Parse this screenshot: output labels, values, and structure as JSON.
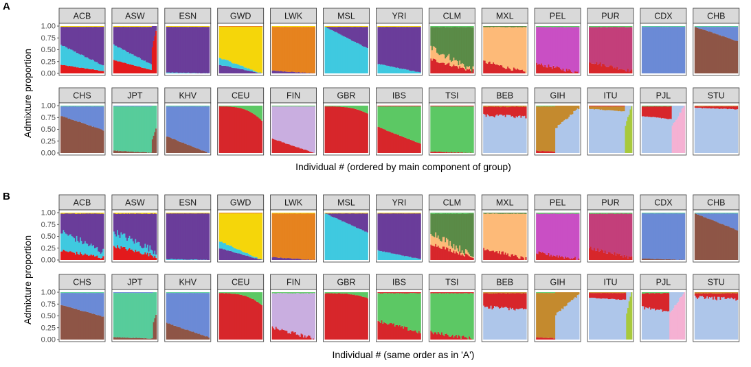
{
  "colors": {
    "afr_purple": "#6a3d9a",
    "afr_red": "#e31a1c",
    "afr_cyan": "#3fc9e0",
    "afr_gold": "#f5d60a",
    "afr_orange": "#e6831f",
    "eas_blue": "#6b8ad6",
    "eas_brown": "#8e5546",
    "eas_teal": "#57cc9b",
    "eur_red": "#d7262b",
    "eur_lilac": "#c9aee0",
    "eur_green": "#5cc864",
    "amr_green": "#5a8b47",
    "amr_peach": "#fdba78",
    "amr_magenta": "#c94fc4",
    "amr_rose": "#c33f7a",
    "sas_lightblue": "#aec6ea",
    "sas_ochre": "#c48a2e",
    "sas_pink": "#f5b1d3",
    "sas_olive": "#a8c93d"
  },
  "chart_data": [
    {
      "type": "stacked-bar-facets",
      "panel_label": "A",
      "xlabel": "Individual # (ordered by main component of group)",
      "ylabel": "Admixture proportion",
      "ylim": [
        0,
        1
      ],
      "yticks": [
        "0.00",
        "0.25",
        "0.50",
        "0.75",
        "1.00"
      ],
      "rows": [
        [
          {
            "name": "ACB",
            "mode": "stack",
            "main": "afr_purple",
            "minor": [
              {
                "c": "afr_red",
                "s": 0.05,
                "e": 0.18
              },
              {
                "c": "afr_cyan",
                "s": 0.12,
                "e": 0.42
              }
            ],
            "top": "afr_gold"
          },
          {
            "name": "ASW",
            "mode": "stack",
            "main": "afr_purple",
            "minor": [
              {
                "c": "afr_red",
                "s": 0.05,
                "e": 0.28
              },
              {
                "c": "afr_cyan",
                "s": 0.1,
                "e": 0.32
              }
            ],
            "top": "afr_gold",
            "tail": {
              "c": "afr_red",
              "f": 0.1,
              "v": 0.9
            }
          },
          {
            "name": "ESN",
            "mode": "stack",
            "main": "afr_purple",
            "minor": [
              {
                "c": "afr_cyan",
                "s": 0,
                "e": 0.02
              }
            ],
            "top": "afr_gold"
          },
          {
            "name": "GWD",
            "mode": "stack",
            "main": "afr_gold",
            "minor": [
              {
                "c": "afr_purple",
                "s": 0,
                "e": 0.18
              },
              {
                "c": "afr_cyan",
                "s": 0,
                "e": 0.15
              }
            ],
            "top": "afr_orange"
          },
          {
            "name": "LWK",
            "mode": "stack",
            "main": "afr_orange",
            "minor": [
              {
                "c": "afr_purple",
                "s": 0,
                "e": 0.06
              }
            ],
            "top": "afr_gold"
          },
          {
            "name": "MSL",
            "mode": "top",
            "main": "afr_cyan",
            "sub": {
              "c": "afr_purple",
              "s": 0,
              "e": 0.45
            },
            "top": "afr_gold"
          },
          {
            "name": "YRI",
            "mode": "stack",
            "main": "afr_purple",
            "minor": [
              {
                "c": "afr_cyan",
                "s": 0.02,
                "e": 0.2
              }
            ],
            "top": "afr_gold"
          },
          {
            "name": "CLM",
            "mode": "stack",
            "main": "amr_green",
            "minor": [
              {
                "c": "eur_red",
                "s": 0.05,
                "e": 0.3
              },
              {
                "c": "amr_peach",
                "s": 0.02,
                "e": 0.25
              }
            ],
            "top": "eur_green",
            "noisy": true
          },
          {
            "name": "MXL",
            "mode": "stack",
            "main": "amr_peach",
            "minor": [
              {
                "c": "eur_red",
                "s": 0.02,
                "e": 0.25
              }
            ],
            "top": "amr_green",
            "noisy": true
          },
          {
            "name": "PEL",
            "mode": "stack",
            "main": "amr_magenta",
            "minor": [
              {
                "c": "eur_red",
                "s": 0.02,
                "e": 0.2
              }
            ],
            "top": "eur_green",
            "noisy": true
          },
          {
            "name": "PUR",
            "mode": "stack",
            "main": "amr_rose",
            "minor": [
              {
                "c": "eur_red",
                "s": 0.05,
                "e": 0.25
              }
            ],
            "top": "eur_green",
            "noisy": true
          },
          {
            "name": "CDX",
            "mode": "stack",
            "main": "eas_blue",
            "minor": [],
            "top": "eas_teal"
          },
          {
            "name": "CHB",
            "mode": "top",
            "main": "eas_brown",
            "sub": {
              "c": "eas_blue",
              "s": 0,
              "e": 0.3
            },
            "top": "eas_teal"
          }
        ],
        [
          {
            "name": "CHS",
            "mode": "top",
            "main": "eas_brown",
            "sub": {
              "c": "eas_blue",
              "s": 0.2,
              "e": 0.5
            },
            "top": "eas_teal"
          },
          {
            "name": "JPT",
            "mode": "stack",
            "main": "eas_teal",
            "minor": [
              {
                "c": "eas_brown",
                "s": 0,
                "e": 0.05
              }
            ],
            "top": "eas_blue",
            "tail": {
              "c": "eas_brown",
              "f": 0.1,
              "v": 0.5
            }
          },
          {
            "name": "KHV",
            "mode": "stack",
            "main": "eas_blue",
            "minor": [
              {
                "c": "eas_brown",
                "s": 0,
                "e": 0.35
              }
            ],
            "top": "eas_teal"
          },
          {
            "name": "CEU",
            "mode": "stack",
            "main": "eur_red",
            "minor": [],
            "top": "eur_green",
            "topgrow": 0.3
          },
          {
            "name": "FIN",
            "mode": "stack",
            "main": "eur_lilac",
            "minor": [
              {
                "c": "eur_red",
                "s": 0,
                "e": 0.3
              }
            ],
            "top": "eur_green"
          },
          {
            "name": "GBR",
            "mode": "stack",
            "main": "eur_red",
            "minor": [],
            "top": "eur_green",
            "topgrow": 0.15
          },
          {
            "name": "IBS",
            "mode": "stack",
            "main": "eur_green",
            "minor": [
              {
                "c": "eur_red",
                "s": 0.2,
                "e": 0.55
              }
            ],
            "top": "eur_red"
          },
          {
            "name": "TSI",
            "mode": "stack",
            "main": "eur_green",
            "minor": [
              {
                "c": "eur_red",
                "s": 0,
                "e": 0.03
              }
            ],
            "top": "eur_red"
          },
          {
            "name": "BEB",
            "mode": "top",
            "main": "sas_lightblue",
            "sub": {
              "c": "eur_red",
              "s": 0.18,
              "e": 0.22
            },
            "top": "sas_ochre",
            "noisy": true
          },
          {
            "name": "GIH",
            "mode": "stack",
            "main": "sas_ochre",
            "minor": [
              {
                "c": "eur_red",
                "s": 0,
                "e": 0.05
              }
            ],
            "top": "eur_green",
            "tail": {
              "c": "sas_lightblue",
              "f": 0.55,
              "v": 0.95
            }
          },
          {
            "name": "ITU",
            "mode": "top",
            "main": "sas_lightblue",
            "sub": {
              "c": "sas_ochre",
              "s": 0.05,
              "e": 0.12
            },
            "top": "eur_red",
            "tail": {
              "c": "sas_olive",
              "f": 0.15,
              "v": 1
            }
          },
          {
            "name": "PJL",
            "mode": "top",
            "main": "sas_lightblue",
            "sub": {
              "c": "eur_red",
              "s": 0.2,
              "e": 0.3
            },
            "top": "eur_green",
            "tail": {
              "c": "sas_pink",
              "f": 0.3,
              "v": 1
            }
          },
          {
            "name": "STU",
            "mode": "top",
            "main": "sas_lightblue",
            "sub": {
              "c": "eur_red",
              "s": 0.03,
              "e": 0.06
            },
            "top": "sas_ochre"
          }
        ]
      ]
    },
    {
      "type": "stacked-bar-facets",
      "panel_label": "B",
      "xlabel": "Individual # (same order as in 'A')",
      "ylabel": "Admixture proportion",
      "ylim": [
        0,
        1
      ],
      "yticks": [
        "0.00",
        "0.25",
        "0.50",
        "0.75",
        "1.00"
      ],
      "rows": [
        [
          {
            "name": "ACB",
            "mode": "stack",
            "main": "afr_purple",
            "minor": [
              {
                "c": "afr_red",
                "s": 0.05,
                "e": 0.2
              },
              {
                "c": "afr_cyan",
                "s": 0.12,
                "e": 0.4
              }
            ],
            "top": "afr_gold",
            "noisy": true
          },
          {
            "name": "ASW",
            "mode": "stack",
            "main": "afr_purple",
            "minor": [
              {
                "c": "afr_red",
                "s": 0.08,
                "e": 0.3
              },
              {
                "c": "afr_cyan",
                "s": 0.1,
                "e": 0.3
              }
            ],
            "top": "afr_gold",
            "noisy": true
          },
          {
            "name": "ESN",
            "mode": "stack",
            "main": "afr_purple",
            "minor": [
              {
                "c": "afr_cyan",
                "s": 0,
                "e": 0.02
              }
            ],
            "top": "afr_gold"
          },
          {
            "name": "GWD",
            "mode": "stack",
            "main": "afr_gold",
            "minor": [
              {
                "c": "afr_purple",
                "s": 0,
                "e": 0.25
              },
              {
                "c": "afr_cyan",
                "s": 0,
                "e": 0.15
              }
            ],
            "top": "afr_orange"
          },
          {
            "name": "LWK",
            "mode": "stack",
            "main": "afr_orange",
            "minor": [
              {
                "c": "afr_purple",
                "s": 0,
                "e": 0.06
              }
            ],
            "top": "afr_gold"
          },
          {
            "name": "MSL",
            "mode": "top",
            "main": "afr_cyan",
            "sub": {
              "c": "afr_purple",
              "s": 0,
              "e": 0.4
            },
            "top": "afr_gold"
          },
          {
            "name": "YRI",
            "mode": "stack",
            "main": "afr_purple",
            "minor": [
              {
                "c": "afr_cyan",
                "s": 0.02,
                "e": 0.2
              }
            ],
            "top": "afr_gold"
          },
          {
            "name": "CLM",
            "mode": "stack",
            "main": "amr_green",
            "minor": [
              {
                "c": "eur_red",
                "s": 0.05,
                "e": 0.35
              },
              {
                "c": "amr_peach",
                "s": 0.02,
                "e": 0.25
              }
            ],
            "top": "eur_green",
            "noisy": true
          },
          {
            "name": "MXL",
            "mode": "stack",
            "main": "amr_peach",
            "minor": [
              {
                "c": "eur_red",
                "s": 0.02,
                "e": 0.25
              }
            ],
            "top": "amr_green",
            "noisy": true
          },
          {
            "name": "PEL",
            "mode": "stack",
            "main": "amr_magenta",
            "minor": [
              {
                "c": "eur_red",
                "s": 0.02,
                "e": 0.15
              }
            ],
            "top": "eur_green",
            "noisy": true
          },
          {
            "name": "PUR",
            "mode": "stack",
            "main": "amr_rose",
            "minor": [
              {
                "c": "eur_red",
                "s": 0.05,
                "e": 0.25
              }
            ],
            "top": "eur_green",
            "noisy": true
          },
          {
            "name": "CDX",
            "mode": "stack",
            "main": "eas_blue",
            "minor": [
              {
                "c": "eas_brown",
                "s": 0,
                "e": 0.03
              }
            ],
            "top": "eas_teal"
          },
          {
            "name": "CHB",
            "mode": "top",
            "main": "eas_brown",
            "sub": {
              "c": "eas_blue",
              "s": 0,
              "e": 0.35
            },
            "top": "eas_teal"
          }
        ],
        [
          {
            "name": "CHS",
            "mode": "top",
            "main": "eas_brown",
            "sub": {
              "c": "eas_blue",
              "s": 0.25,
              "e": 0.5
            },
            "top": "eas_teal"
          },
          {
            "name": "JPT",
            "mode": "stack",
            "main": "eas_teal",
            "minor": [
              {
                "c": "eas_brown",
                "s": 0.02,
                "e": 0.05
              }
            ],
            "top": "eas_blue",
            "tail": {
              "c": "eas_brown",
              "f": 0.08,
              "v": 0.55
            }
          },
          {
            "name": "KHV",
            "mode": "stack",
            "main": "eas_blue",
            "minor": [
              {
                "c": "eas_brown",
                "s": 0.05,
                "e": 0.35
              }
            ],
            "top": "eas_teal"
          },
          {
            "name": "CEU",
            "mode": "stack",
            "main": "eur_red",
            "minor": [],
            "top": "eur_green",
            "topgrow": 0.25,
            "noisy": true
          },
          {
            "name": "FIN",
            "mode": "stack",
            "main": "eur_lilac",
            "minor": [
              {
                "c": "eur_red",
                "s": 0.02,
                "e": 0.25
              }
            ],
            "top": "eur_green",
            "noisy": true
          },
          {
            "name": "GBR",
            "mode": "stack",
            "main": "eur_red",
            "minor": [],
            "top": "eur_green",
            "topgrow": 0.1,
            "noisy": true
          },
          {
            "name": "IBS",
            "mode": "stack",
            "main": "eur_green",
            "minor": [
              {
                "c": "eur_red",
                "s": 0.15,
                "e": 0.4
              }
            ],
            "top": "eur_red",
            "noisy": true
          },
          {
            "name": "TSI",
            "mode": "stack",
            "main": "eur_green",
            "minor": [
              {
                "c": "eur_red",
                "s": 0.02,
                "e": 0.15
              }
            ],
            "top": "eur_red",
            "noisy": true
          },
          {
            "name": "BEB",
            "mode": "top",
            "main": "sas_lightblue",
            "sub": {
              "c": "eur_red",
              "s": 0.28,
              "e": 0.35
            },
            "top": "sas_ochre",
            "noisy": true
          },
          {
            "name": "GIH",
            "mode": "stack",
            "main": "sas_ochre",
            "minor": [
              {
                "c": "eur_red",
                "s": 0,
                "e": 0.05
              }
            ],
            "top": "eur_green",
            "tail": {
              "c": "sas_lightblue",
              "f": 0.55,
              "v": 0.95
            }
          },
          {
            "name": "ITU",
            "mode": "top",
            "main": "sas_lightblue",
            "sub": {
              "c": "eur_red",
              "s": 0.1,
              "e": 0.15
            },
            "top": "sas_ochre",
            "tail": {
              "c": "sas_olive",
              "f": 0.12,
              "v": 1
            }
          },
          {
            "name": "PJL",
            "mode": "top",
            "main": "sas_lightblue",
            "sub": {
              "c": "eur_red",
              "s": 0.3,
              "e": 0.45
            },
            "top": "eur_green",
            "tail": {
              "c": "sas_pink",
              "f": 0.35,
              "v": 1
            },
            "noisy": true
          },
          {
            "name": "STU",
            "mode": "top",
            "main": "sas_lightblue",
            "sub": {
              "c": "eur_red",
              "s": 0.08,
              "e": 0.12
            },
            "top": "sas_ochre",
            "noisy": true
          }
        ]
      ]
    }
  ]
}
